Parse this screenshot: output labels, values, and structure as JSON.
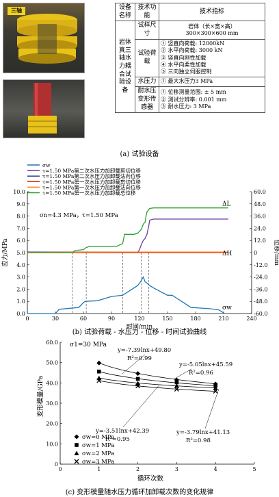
{
  "panel_a": {
    "caption": "(a) 试验设备",
    "photo_tag": "三轴",
    "table": {
      "header": [
        "设备名称",
        "技术功能",
        "技术指标"
      ],
      "device_name": "岩体真三轴水力耦合试验设备",
      "rows": [
        {
          "function": "试样尺寸",
          "spec": [
            "岩体（长×宽×高）",
            "300×300×600 mm"
          ]
        },
        {
          "function": "试验荷载",
          "spec": [
            "① 竖直向荷载: 12000kN",
            "② 水平向荷载: 3000 kN",
            "③ 竖直向刚性加载",
            "④ 水平向柔性加载",
            "⑤ 三向独立伺服控制"
          ]
        },
        {
          "function": "水压力",
          "spec": [
            "① 最大水压力3 MPa"
          ]
        },
        {
          "function": "耐水压变形传感器",
          "spec": [
            "① 位移测量范围: ± 5 mm",
            "② 测试分辨率: 0.001 mm",
            "③ 耐水压力: 3 MPa"
          ]
        }
      ]
    }
  },
  "panel_b": {
    "caption": "(b) 试验荷载 - 水压力 - 位移 - 时间试验曲线",
    "legend": [
      "σw",
      "τ=1.50 MPa第二次水压力加卸载剪切位移",
      "τ=1.50 MPa第二次水压力加卸载法向位移",
      "τ=1.50 MPa第一次水压力加卸载剪切位移",
      "τ=1.50 MPa第一次水压力加卸载法向位移",
      "τ=1.50 MPa第一次水压力加卸载总位移"
    ],
    "annotation": "σn=4.3 MPa，τ=1.50 MPa",
    "label_dl": "ΔL",
    "label_dh": "ΔH",
    "label_sw": "σw",
    "colors": [
      "#1f77b4",
      "#6a3d9a",
      "#1f3a93",
      "#d62728",
      "#ff7f0e",
      "#2ca02c"
    ]
  },
  "panel_c": {
    "caption": "(c) 变形模量随水压力循环加卸载次数的变化规律",
    "annotation": "σ1=30 MPa",
    "fits": [
      {
        "eq": "y=-7.39lnx+49.80",
        "r2": "R²=0.99"
      },
      {
        "eq": "y=-5.05lnx+45.59",
        "r2": "R²=0.96"
      },
      {
        "eq": "y=-3.51lnx+42.39",
        "r2": "R²=0.95"
      },
      {
        "eq": "y=-3.79lnx+41.13",
        "r2": "R²=0.98"
      }
    ],
    "legend": [
      "σw=0 MPa",
      "σw=1 MPa",
      "σw=2 MPa",
      "σw=3 MPa"
    ]
  },
  "chart_data": [
    {
      "type": "line",
      "xlabel": "时间/min",
      "ylabel": "应力/MPa",
      "y2label": "位移/mm",
      "xlim": [
        0,
        240
      ],
      "ylim": [
        0,
        10
      ],
      "y2lim": [
        -60,
        60
      ],
      "xticks": [
        0,
        30,
        60,
        90,
        120,
        150,
        180,
        210,
        240
      ],
      "yticks": [
        0.0,
        1.0,
        2.0,
        3.0,
        4.0,
        5.0,
        6.0,
        7.0,
        8.0,
        9.0,
        10.0
      ],
      "y2ticks": [
        -60.0,
        -48.0,
        -36.0,
        -24.0,
        -12.0,
        0,
        12.0,
        24.0,
        36.0,
        48.0,
        60.0
      ],
      "vlines": [
        48,
        63,
        102,
        122,
        130
      ],
      "series": [
        {
          "name": "σw",
          "axis": "left",
          "x": [
            0,
            30,
            34,
            55,
            60,
            62,
            75,
            90,
            102,
            112,
            118,
            121,
            124,
            126,
            128,
            131,
            135,
            150,
            155,
            165,
            175,
            185,
            195,
            205,
            210,
            211
          ],
          "values": [
            0,
            0,
            0.35,
            0.5,
            0.9,
            1.0,
            1.05,
            1.4,
            1.5,
            2.0,
            2.3,
            2.6,
            3.0,
            2.6,
            2.5,
            2.3,
            2.1,
            1.5,
            1.5,
            1.0,
            0.5,
            0.45,
            0.4,
            0.3,
            0.05,
            0
          ]
        },
        {
          "name": "τ=1.50 MPa第二次水压力加卸载剪切位移",
          "axis": "right",
          "x": [
            0,
            118,
            120,
            122,
            124,
            126,
            128,
            130,
            131,
            135,
            200,
            215
          ],
          "values": [
            0,
            0,
            3,
            8,
            12,
            14,
            18,
            27,
            32,
            33,
            33,
            33
          ]
        },
        {
          "name": "τ=1.50 MPa第二次水压力加卸载法向位移",
          "axis": "right",
          "x": [
            0,
            215
          ],
          "values": [
            0.6,
            0.6
          ]
        },
        {
          "name": "τ=1.50 MPa第一次水压力加卸载剪切位移",
          "axis": "right",
          "x": [
            0,
            215
          ],
          "values": [
            0,
            0
          ]
        },
        {
          "name": "τ=1.50 MPa第一次水压力加卸载法向位移",
          "axis": "right",
          "x": [
            0,
            30,
            60,
            120,
            215
          ],
          "values": [
            0.3,
            0.4,
            0.5,
            0.6,
            0.6
          ]
        },
        {
          "name": "τ=1.50 MPa第一次水压力加卸载总位移",
          "axis": "right",
          "x": [
            0,
            48,
            51,
            60,
            63,
            66,
            95,
            100,
            102,
            104,
            114,
            118,
            120,
            122,
            124,
            126,
            127,
            128,
            131,
            135,
            215
          ],
          "values": [
            0,
            0,
            2,
            3,
            5,
            6,
            6,
            8,
            9,
            18,
            18,
            19,
            21,
            23,
            28,
            30,
            36,
            40,
            43.5,
            44,
            44
          ]
        }
      ]
    },
    {
      "type": "scatter",
      "xlabel": "循环次数",
      "ylabel": "变形模量/GPa",
      "xlim": [
        0,
        5
      ],
      "ylim": [
        0,
        60
      ],
      "xticks": [
        0,
        1,
        2,
        3,
        4,
        5
      ],
      "yticks": [
        0,
        10.0,
        20.0,
        30.0,
        40.0,
        50.0,
        60.0
      ],
      "series": [
        {
          "name": "σw=0 MPa",
          "marker": "diamond",
          "x": [
            1,
            2,
            3,
            4
          ],
          "values": [
            49.8,
            44.6,
            41.4,
            39.5
          ],
          "fit": [
            -7.39,
            49.8
          ]
        },
        {
          "name": "σw=1 MPa",
          "marker": "square",
          "x": [
            1,
            2,
            3,
            4
          ],
          "values": [
            45.6,
            42.0,
            40.3,
            38.6
          ],
          "fit": [
            -5.05,
            45.59
          ]
        },
        {
          "name": "σw=2 MPa",
          "marker": "triangle",
          "x": [
            1,
            2,
            3,
            4
          ],
          "values": [
            42.4,
            39.8,
            38.6,
            37.5
          ],
          "fit": [
            -3.51,
            42.39
          ]
        },
        {
          "name": "σw=3 MPa",
          "marker": "cross",
          "x": [
            1,
            2,
            3,
            4
          ],
          "values": [
            41.1,
            38.5,
            36.9,
            35.9
          ],
          "fit": [
            -3.79,
            41.13
          ]
        }
      ]
    }
  ]
}
